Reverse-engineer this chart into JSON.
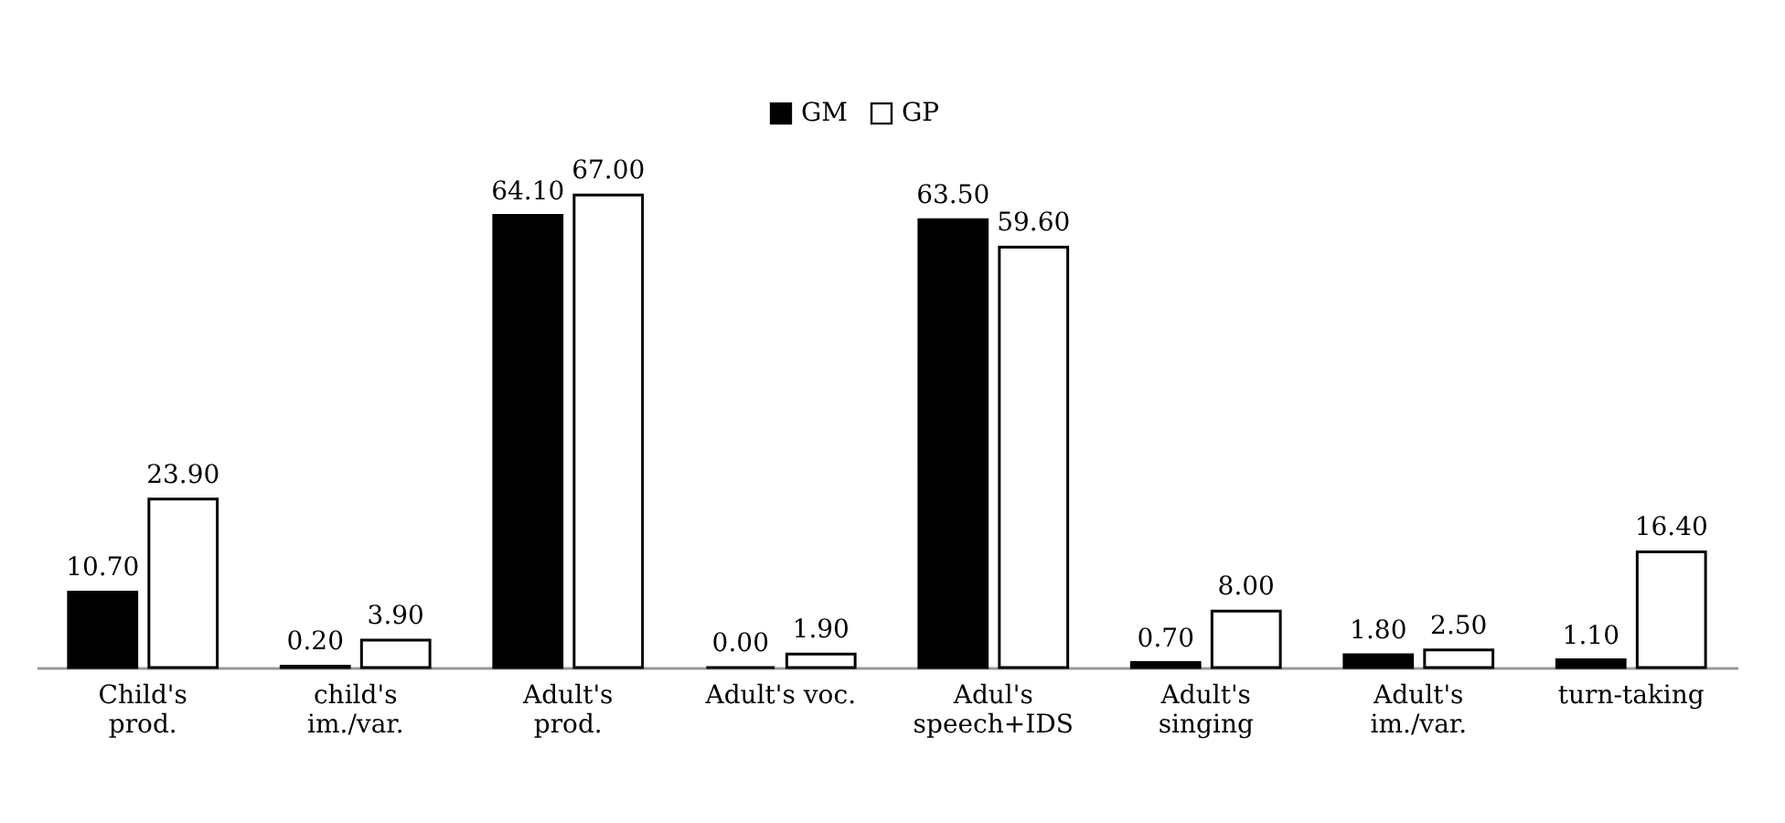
{
  "chart_data": {
    "type": "bar",
    "categories": [
      "Child's\nprod.",
      "child's\nim./var.",
      "Adult's\nprod.",
      "Adult's voc.",
      "Adul's\nspeech+IDS",
      "Adult's\nsinging",
      "Adult's\nim./var.",
      "turn-taking"
    ],
    "series": [
      {
        "name": "GM",
        "color": "#000000",
        "values": [
          10.7,
          0.2,
          64.1,
          0.0,
          63.5,
          0.7,
          1.8,
          1.1
        ],
        "value_labels": [
          "10.70",
          "0.20",
          "64.10",
          "0.00",
          "63.50",
          "0.70",
          "1.80",
          "1.10"
        ]
      },
      {
        "name": "GP",
        "color": "#ffffff",
        "values": [
          23.9,
          3.9,
          67.0,
          1.9,
          59.6,
          8.0,
          2.5,
          16.4
        ],
        "value_labels": [
          "23.90",
          "3.90",
          "67.00",
          "1.90",
          "59.60",
          "8.00",
          "2.50",
          "16.40"
        ]
      }
    ],
    "legend": "top"
  }
}
